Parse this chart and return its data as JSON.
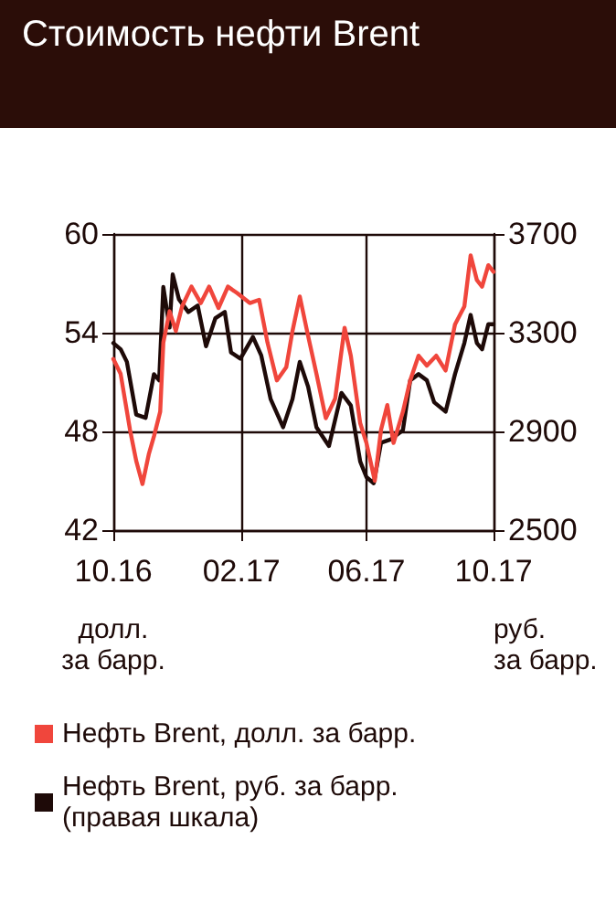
{
  "chart_data": {
    "type": "line",
    "title": "Стоимость нефти Brent",
    "ylabel": "долл.\nза барр.",
    "y2label": "руб.\nза барр.",
    "xlim": [
      "2016-10-01",
      "2017-10-01"
    ],
    "xticks": [
      {
        "value": "2016-10-01",
        "label": "10.16"
      },
      {
        "value": "2017-02-01",
        "label": "02.17"
      },
      {
        "value": "2017-06-01",
        "label": "06.17"
      },
      {
        "value": "2017-10-01",
        "label": "10.17"
      }
    ],
    "ylim": [
      42,
      60
    ],
    "yticks": [
      42,
      48,
      54,
      60
    ],
    "y2lim": [
      2500,
      3700
    ],
    "y2ticks": [
      2500,
      2900,
      3300,
      3700
    ],
    "grid": true,
    "legend": "bottom",
    "marker": "none",
    "line_style": "solid",
    "series": [
      {
        "name": "Нефть Brent, долл. за барр.",
        "color": "#f0463c",
        "x": [
          "2016-10-01",
          "2016-10-08",
          "2016-10-17",
          "2016-10-23",
          "2016-10-29",
          "2016-11-04",
          "2016-11-09",
          "2016-11-15",
          "2016-11-18",
          "2016-11-24",
          "2016-11-30",
          "2016-12-06",
          "2016-12-15",
          "2016-12-24",
          "2017-01-01",
          "2017-01-10",
          "2017-01-19",
          "2017-01-28",
          "2017-02-09",
          "2017-02-18",
          "2017-02-26",
          "2017-03-07",
          "2017-03-16",
          "2017-03-22",
          "2017-03-29",
          "2017-04-06",
          "2017-04-14",
          "2017-04-23",
          "2017-05-02",
          "2017-05-11",
          "2017-05-17",
          "2017-05-26",
          "2017-06-01",
          "2017-06-09",
          "2017-06-15",
          "2017-06-21",
          "2017-06-27",
          "2017-07-06",
          "2017-07-13",
          "2017-07-21",
          "2017-07-29",
          "2017-08-07",
          "2017-08-16",
          "2017-08-25",
          "2017-09-03",
          "2017-09-09",
          "2017-09-15",
          "2017-09-20",
          "2017-09-26",
          "2017-10-01"
        ],
        "values": [
          52.4,
          51.5,
          48.1,
          46.2,
          44.8,
          46.6,
          47.7,
          49.2,
          53.4,
          55.3,
          54.1,
          55.6,
          56.8,
          55.8,
          56.8,
          55.5,
          56.8,
          56.4,
          55.8,
          56.0,
          53.4,
          51.1,
          51.9,
          54.1,
          56.2,
          53.8,
          51.5,
          48.8,
          50.0,
          54.3,
          52.6,
          48.5,
          47.3,
          45.0,
          48.1,
          49.6,
          47.3,
          49.2,
          51.1,
          52.6,
          52.0,
          52.6,
          51.7,
          54.5,
          55.6,
          58.7,
          57.2,
          56.8,
          58.1,
          57.7
        ]
      },
      {
        "name": "Нефть Brent, руб. за барр.\n(правая шкала)",
        "color": "#1e0a08",
        "axis": "y2",
        "x": [
          "2016-10-01",
          "2016-10-08",
          "2016-10-14",
          "2016-10-23",
          "2016-11-01",
          "2016-11-09",
          "2016-11-14",
          "2016-11-18",
          "2016-11-24",
          "2016-11-27",
          "2016-12-03",
          "2016-12-12",
          "2016-12-21",
          "2016-12-29",
          "2017-01-07",
          "2017-01-16",
          "2017-01-22",
          "2017-01-31",
          "2017-02-12",
          "2017-02-20",
          "2017-03-01",
          "2017-03-13",
          "2017-03-22",
          "2017-03-29",
          "2017-04-06",
          "2017-04-14",
          "2017-04-26",
          "2017-05-08",
          "2017-05-17",
          "2017-05-26",
          "2017-06-01",
          "2017-06-08",
          "2017-06-15",
          "2017-06-24",
          "2017-07-06",
          "2017-07-13",
          "2017-07-21",
          "2017-07-29",
          "2017-08-05",
          "2017-08-16",
          "2017-08-25",
          "2017-09-03",
          "2017-09-09",
          "2017-09-15",
          "2017-09-20",
          "2017-09-26",
          "2017-10-01"
        ],
        "values": [
          3258,
          3233,
          3182,
          2968,
          2955,
          3132,
          3107,
          3485,
          3321,
          3536,
          3435,
          3384,
          3410,
          3245,
          3359,
          3384,
          3220,
          3195,
          3283,
          3208,
          3031,
          2917,
          3031,
          3182,
          3081,
          2917,
          2841,
          3056,
          3005,
          2778,
          2715,
          2690,
          2854,
          2867,
          2905,
          3107,
          3132,
          3107,
          3018,
          2980,
          3132,
          3258,
          3372,
          3258,
          3233,
          3334,
          3334
        ]
      }
    ]
  }
}
